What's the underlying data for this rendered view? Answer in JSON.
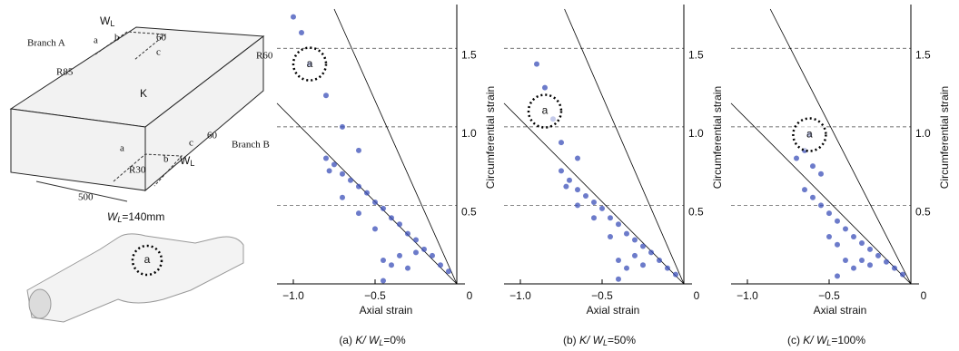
{
  "diagram": {
    "branch_a": "Branch A",
    "branch_b": "Branch B",
    "wl_top": {
      "main": "W",
      "sub": "L"
    },
    "wl_bottom": {
      "main": "W",
      "sub": "L"
    },
    "r85": "R85",
    "r60": "R60",
    "r30": "R30",
    "dim_top": "60",
    "dim_side": "60",
    "k": "K",
    "length": "500",
    "top_letters": [
      "a",
      "b",
      "c"
    ],
    "bottom_letters": [
      "a",
      "b",
      "c"
    ],
    "caption": {
      "main": "W",
      "sub": "L",
      "rest": "=140mm"
    },
    "part_label": "a"
  },
  "chart_data": [
    {
      "type": "scatter",
      "xlabel": "Axial strain",
      "ylabel": "Circumferential strain",
      "caption": {
        "prefix": "(a) ",
        "italic": "K/ W",
        "sub": "L",
        "rest": "=0%"
      },
      "xlim": [
        -1.1,
        0.05
      ],
      "ylim": [
        0,
        1.75
      ],
      "xticks": [
        {
          "value": -1,
          "label": "−1.0"
        },
        {
          "value": -0.5,
          "label": "−0.5"
        },
        0
      ],
      "yticks": [
        0.5,
        {
          "value": 1,
          "label": "1.0"
        },
        1.5
      ],
      "grid": true,
      "color": "#3b4fb8",
      "x": [
        -0.05,
        -0.1,
        -0.15,
        -0.2,
        -0.25,
        -0.3,
        -0.35,
        -0.4,
        -0.45,
        -0.5,
        -0.55,
        -0.6,
        -0.65,
        -0.7,
        -0.75,
        -0.8,
        -0.78,
        -0.7,
        -0.6,
        -0.5,
        -0.45,
        -0.4,
        -0.35,
        -0.3,
        -0.25,
        -0.45,
        -0.6,
        -0.7,
        -0.8,
        -0.9,
        -0.95,
        -1.0
      ],
      "y": [
        0.08,
        0.12,
        0.18,
        0.22,
        0.28,
        0.32,
        0.38,
        0.42,
        0.48,
        0.52,
        0.58,
        0.62,
        0.66,
        0.7,
        0.76,
        0.8,
        0.72,
        0.55,
        0.45,
        0.35,
        0.15,
        0.12,
        0.18,
        0.1,
        0.2,
        0.02,
        0.85,
        1.0,
        1.2,
        1.4,
        1.6,
        1.7
      ],
      "lines": [
        {
          "x": [
            0,
            -1.1
          ],
          "y": [
            0,
            1.15
          ]
        },
        {
          "x": [
            0,
            -0.75
          ],
          "y": [
            0,
            1.75
          ]
        }
      ],
      "annotation": {
        "text": "a",
        "x": -0.9,
        "y": 1.4
      }
    },
    {
      "type": "scatter",
      "xlabel": "Axial strain",
      "ylabel": "Circumferential strain",
      "caption": {
        "prefix": "(b) ",
        "italic": "K/ W",
        "sub": "L",
        "rest": "=50%"
      },
      "xlim": [
        -1.1,
        0.05
      ],
      "ylim": [
        0,
        1.75
      ],
      "xticks": [
        {
          "value": -1,
          "label": "−1.0"
        },
        {
          "value": -0.5,
          "label": "−0.5"
        },
        0
      ],
      "yticks": [
        0.5,
        {
          "value": 1,
          "label": "1.0"
        },
        1.5
      ],
      "grid": true,
      "color": "#3b4fb8",
      "x": [
        -0.05,
        -0.1,
        -0.15,
        -0.2,
        -0.25,
        -0.3,
        -0.35,
        -0.4,
        -0.45,
        -0.5,
        -0.55,
        -0.6,
        -0.65,
        -0.7,
        -0.75,
        -0.72,
        -0.65,
        -0.55,
        -0.45,
        -0.4,
        -0.35,
        -0.3,
        -0.25,
        -0.4,
        -0.65,
        -0.75,
        -0.8,
        -0.85,
        -0.9
      ],
      "y": [
        0.06,
        0.1,
        0.15,
        0.2,
        0.24,
        0.28,
        0.32,
        0.38,
        0.42,
        0.48,
        0.52,
        0.56,
        0.6,
        0.66,
        0.72,
        0.62,
        0.5,
        0.42,
        0.3,
        0.15,
        0.1,
        0.18,
        0.12,
        0.03,
        0.8,
        0.9,
        1.05,
        1.25,
        1.4
      ],
      "lines": [
        {
          "x": [
            0,
            -1.1
          ],
          "y": [
            0,
            1.15
          ]
        },
        {
          "x": [
            0,
            -0.73
          ],
          "y": [
            0,
            1.75
          ]
        }
      ],
      "annotation": {
        "text": "a",
        "x": -0.85,
        "y": 1.1
      }
    },
    {
      "type": "scatter",
      "xlabel": "Axial strain",
      "ylabel": "Circumferential strain",
      "caption": {
        "prefix": "(c) ",
        "italic": "K/ W",
        "sub": "L",
        "rest": "=100%"
      },
      "xlim": [
        -1.1,
        0.05
      ],
      "ylim": [
        0,
        1.75
      ],
      "xticks": [
        {
          "value": -1,
          "label": "−1.0"
        },
        {
          "value": -0.5,
          "label": "−0.5"
        },
        0
      ],
      "yticks": [
        0.5,
        {
          "value": 1,
          "label": "1.0"
        },
        1.5
      ],
      "grid": true,
      "color": "#3b4fb8",
      "x": [
        -0.05,
        -0.1,
        -0.15,
        -0.2,
        -0.25,
        -0.3,
        -0.35,
        -0.4,
        -0.45,
        -0.5,
        -0.55,
        -0.6,
        -0.65,
        -0.55,
        -0.5,
        -0.45,
        -0.4,
        -0.35,
        -0.3,
        -0.25,
        -0.45,
        -0.6,
        -0.65,
        -0.7,
        -0.62
      ],
      "y": [
        0.06,
        0.1,
        0.14,
        0.18,
        0.22,
        0.26,
        0.3,
        0.35,
        0.4,
        0.45,
        0.5,
        0.55,
        0.6,
        0.7,
        0.3,
        0.25,
        0.15,
        0.1,
        0.15,
        0.12,
        0.05,
        0.75,
        0.85,
        0.8,
        0.95
      ],
      "lines": [
        {
          "x": [
            0,
            -1.1
          ],
          "y": [
            0,
            1.15
          ]
        },
        {
          "x": [
            0,
            -0.86
          ],
          "y": [
            0,
            1.75
          ]
        }
      ],
      "annotation": {
        "text": "a",
        "x": -0.62,
        "y": 0.95
      }
    }
  ]
}
